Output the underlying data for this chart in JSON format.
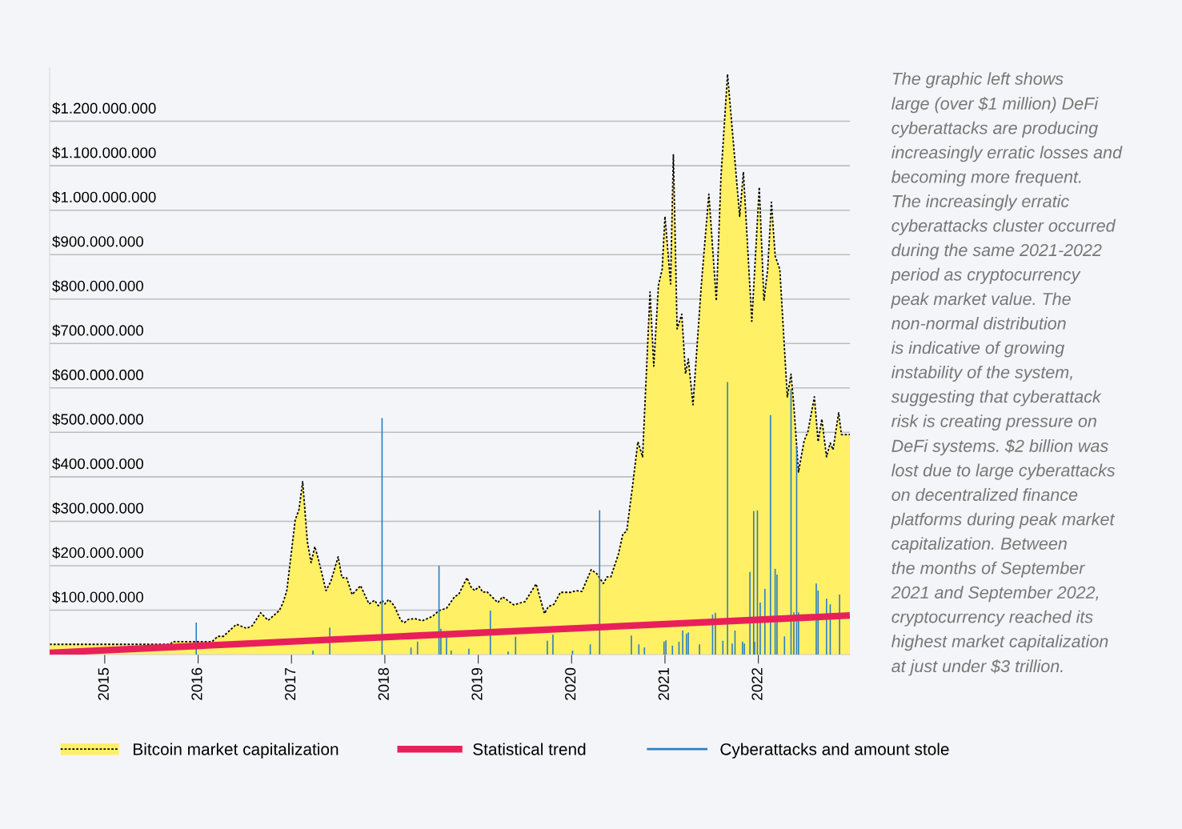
{
  "chart_data": {
    "type": "area",
    "xlim": [
      2014.41,
      2022.98
    ],
    "xticks": [
      2015,
      2016,
      2017,
      2018,
      2019,
      2020,
      2021,
      2022
    ],
    "ylim": [
      0,
      1320000000
    ],
    "yticks": [
      {
        "value": 100000000,
        "label": "$100.000.000"
      },
      {
        "value": 200000000,
        "label": "$200.000.000"
      },
      {
        "value": 300000000,
        "label": "$300.000.000"
      },
      {
        "value": 400000000,
        "label": "$400.000.000"
      },
      {
        "value": 500000000,
        "label": "$500.000.000"
      },
      {
        "value": 600000000,
        "label": "$600.000.000"
      },
      {
        "value": 700000000,
        "label": "$700.000.000"
      },
      {
        "value": 800000000,
        "label": "$800.000.000"
      },
      {
        "value": 900000000,
        "label": "$900.000.000"
      },
      {
        "value": 1000000000,
        "label": "$1.000.000.000"
      },
      {
        "value": 1100000000,
        "label": "$1.100.000.000"
      },
      {
        "value": 1200000000,
        "label": "$1.200.000.000"
      }
    ],
    "grid": "y",
    "legend": "bottom",
    "marker": "none",
    "series": [
      {
        "name": "Bitcoin market capitalization",
        "color": "#fff066",
        "line_style": "dotted",
        "x": [
          2014.41,
          2015.7,
          2015.73,
          2016.15,
          2016.21,
          2016.27,
          2016.41,
          2016.52,
          2016.58,
          2016.67,
          2016.75,
          2016.87,
          2016.91,
          2016.95,
          2017.04,
          2017.08,
          2017.12,
          2017.17,
          2017.21,
          2017.25,
          2017.29,
          2017.37,
          2017.42,
          2017.5,
          2017.54,
          2017.59,
          2017.65,
          2017.74,
          2017.83,
          2017.89,
          2017.93,
          2017.97,
          2018.0,
          2018.04,
          2018.1,
          2018.17,
          2018.21,
          2018.25,
          2018.32,
          2018.4,
          2018.51,
          2018.58,
          2018.66,
          2018.75,
          2018.79,
          2018.88,
          2018.92,
          2018.96,
          2019.01,
          2019.05,
          2019.09,
          2019.21,
          2019.26,
          2019.38,
          2019.5,
          2019.62,
          2019.71,
          2019.75,
          2019.81,
          2019.88,
          2019.99,
          2020.05,
          2020.11,
          2020.21,
          2020.27,
          2020.34,
          2020.38,
          2020.42,
          2020.5,
          2020.55,
          2020.59,
          2020.65,
          2020.71,
          2020.76,
          2020.84,
          2020.88,
          2020.93,
          2020.97,
          2021.0,
          2021.06,
          2021.09,
          2021.13,
          2021.18,
          2021.22,
          2021.25,
          2021.3,
          2021.39,
          2021.47,
          2021.55,
          2021.6,
          2021.67,
          2021.8,
          2021.84,
          2021.93,
          2022.01,
          2022.06,
          2022.1,
          2022.14,
          2022.18,
          2022.23,
          2022.31,
          2022.35,
          2022.38,
          2022.43,
          2022.49,
          2022.53,
          2022.6,
          2022.64,
          2022.68,
          2022.73,
          2022.77,
          2022.8,
          2022.86,
          2022.89,
          2022.98
        ],
        "values": [
          23000000,
          23000000,
          29000000,
          29000000,
          41000000,
          41000000,
          68000000,
          59000000,
          65000000,
          94000000,
          77000000,
          99000000,
          117000000,
          144000000,
          303000000,
          326000000,
          389000000,
          254000000,
          207000000,
          243000000,
          213000000,
          144000000,
          164000000,
          220000000,
          173000000,
          173000000,
          135000000,
          155000000,
          114000000,
          122000000,
          110000000,
          122000000,
          114000000,
          124000000,
          110000000,
          77000000,
          72000000,
          79000000,
          81000000,
          76000000,
          86000000,
          99000000,
          104000000,
          131000000,
          135000000,
          173000000,
          153000000,
          144000000,
          153000000,
          140000000,
          142000000,
          117000000,
          130000000,
          112000000,
          119000000,
          159000000,
          92000000,
          108000000,
          113000000,
          140000000,
          140000000,
          144000000,
          142000000,
          191000000,
          182000000,
          160000000,
          175000000,
          175000000,
          225000000,
          272000000,
          277000000,
          375000000,
          479000000,
          445000000,
          816000000,
          649000000,
          831000000,
          867000000,
          986000000,
          834000000,
          1126000000,
          733000000,
          766000000,
          632000000,
          665000000,
          562000000,
          834000000,
          1036000000,
          796000000,
          1076000000,
          1306000000,
          986000000,
          1086000000,
          750000000,
          1052000000,
          796000000,
          867000000,
          1018000000,
          897000000,
          867000000,
          580000000,
          631000000,
          560000000,
          411000000,
          481000000,
          501000000,
          580000000,
          479000000,
          530000000,
          445000000,
          476000000,
          461000000,
          544000000,
          495000000,
          495000000
        ]
      },
      {
        "name": "Statistical trend",
        "type": "line",
        "color": "#e8205a",
        "x": [
          2014.41,
          2022.98
        ],
        "values": [
          4000000,
          88000000
        ]
      },
      {
        "name": "Cyberattacks and amount stole",
        "type": "bar",
        "color": "#2f7fc1",
        "x": [
          2015.98,
          2017.23,
          2017.41,
          2017.97,
          2018.28,
          2018.35,
          2018.58,
          2018.6,
          2018.66,
          2018.71,
          2018.9,
          2019.13,
          2019.32,
          2019.4,
          2019.74,
          2019.8,
          2020.01,
          2020.2,
          2020.3,
          2020.64,
          2020.72,
          2020.78,
          2020.99,
          2021.01,
          2021.08,
          2021.15,
          2021.19,
          2021.23,
          2021.25,
          2021.37,
          2021.51,
          2021.54,
          2021.62,
          2021.67,
          2021.72,
          2021.75,
          2021.83,
          2021.85,
          2021.91,
          2021.95,
          2021.96,
          2021.99,
          2022.02,
          2022.07,
          2022.13,
          2022.18,
          2022.2,
          2022.28,
          2022.35,
          2022.38,
          2022.41,
          2022.43,
          2022.62,
          2022.64,
          2022.73,
          2022.77,
          2022.87
        ],
        "values": [
          72000000,
          9000000,
          61000000,
          532000000,
          16000000,
          29000000,
          200000000,
          58000000,
          38000000,
          9000000,
          13000000,
          99000000,
          7000000,
          40000000,
          31000000,
          45000000,
          9000000,
          23000000,
          325000000,
          43000000,
          23000000,
          16000000,
          29000000,
          32000000,
          20000000,
          29000000,
          54000000,
          47000000,
          50000000,
          23000000,
          90000000,
          94000000,
          31000000,
          613000000,
          25000000,
          54000000,
          29000000,
          25000000,
          186000000,
          323000000,
          29000000,
          324000000,
          117000000,
          148000000,
          539000000,
          193000000,
          180000000,
          41000000,
          598000000,
          95000000,
          470000000,
          95000000,
          160000000,
          144000000,
          126000000,
          113000000,
          135000000
        ]
      }
    ],
    "annotations": [
      "The graphic left shows\nlarge (over $1 million) DeFi\ncyberattacks are producing\nincreasingly erratic losses and\nbecoming more frequent.\nThe increasingly erratic\ncyberattacks cluster occurred\nduring the same 2021-2022\nperiod as cryptocurrency\npeak market value. The\nnon-normal distribution\nis indicative of growing\ninstability of the system,\nsuggesting that cyberattack\nrisk is creating pressure on\nDeFi systems. $2 billion was\nlost due to large cyberattacks\non decentralized finance\nplatforms during peak market\ncapitalization. Between\nthe months of September\n2021 and September 2022,\ncryptocurrency reached its\nhighest market capitalization\nat just under $3 trillion."
    ]
  }
}
